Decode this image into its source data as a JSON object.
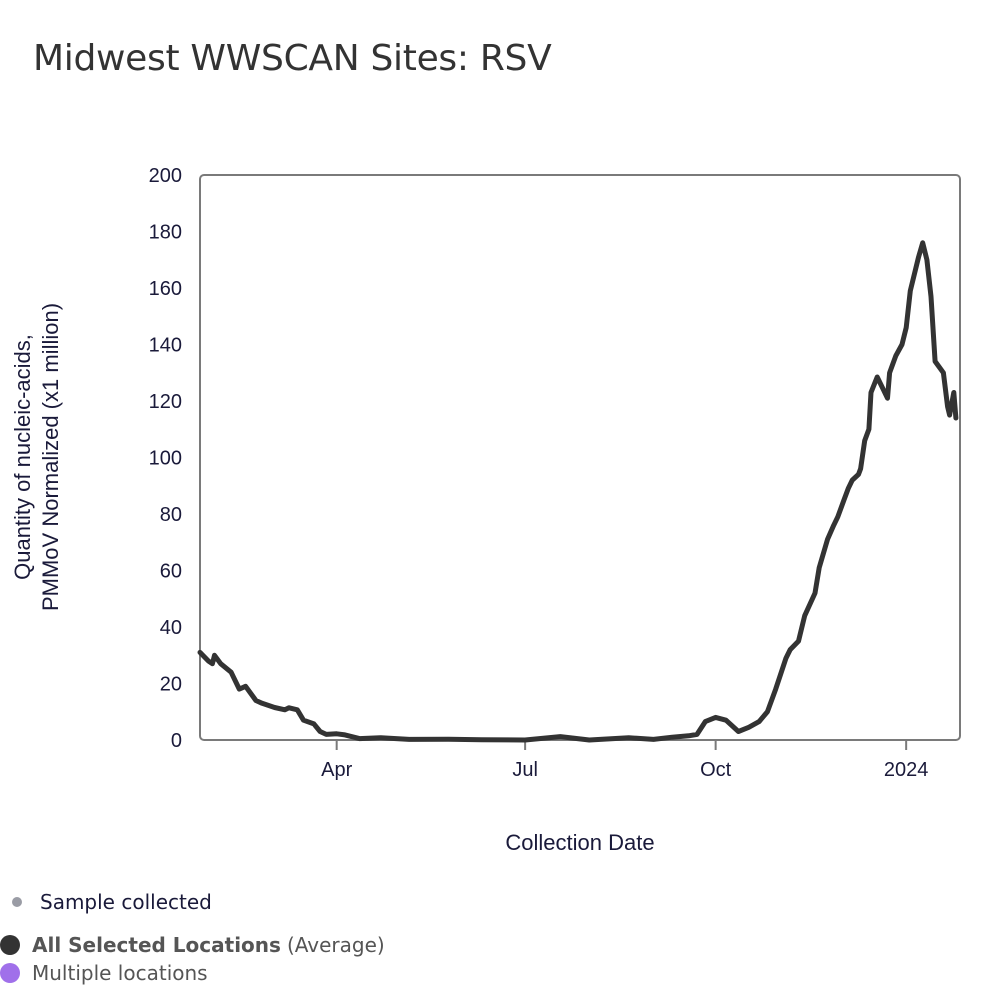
{
  "colors": {
    "line": "#333333",
    "frame": "#7a7a7a",
    "sample_dot": "#9a9ca5",
    "average_dot": "#333333",
    "multiple_dot": "#a070ea",
    "text": "#1a1a3a"
  },
  "chart_data": {
    "type": "line",
    "title": "Midwest WWSCAN Sites: RSV",
    "xlabel": "Collection Date",
    "ylabel_lines": [
      "Quantity of nucleic-acids,",
      "PMMoV Normalized (x1 million)"
    ],
    "ylabel": "Quantity of nucleic-acids, PMMoV Normalized (x1 million)",
    "ylim": [
      0,
      200
    ],
    "yticks": [
      0,
      20,
      40,
      60,
      80,
      100,
      120,
      140,
      160,
      180,
      200
    ],
    "xlim": [
      "2023-01-25",
      "2024-01-27"
    ],
    "xticks": [
      {
        "date": "2023-04-01",
        "label": "Apr"
      },
      {
        "date": "2023-07-01",
        "label": "Jul"
      },
      {
        "date": "2023-10-01",
        "label": "Oct"
      },
      {
        "date": "2024-01-01",
        "label": "2024"
      }
    ],
    "grid": false,
    "legend_position": "bottom-left",
    "series": [
      {
        "name": "All Selected Locations (Average)",
        "points": [
          [
            "2023-01-25",
            31
          ],
          [
            "2023-01-29",
            28
          ],
          [
            "2023-01-31",
            27
          ],
          [
            "2023-02-01",
            30
          ],
          [
            "2023-02-04",
            27
          ],
          [
            "2023-02-09",
            24
          ],
          [
            "2023-02-13",
            18
          ],
          [
            "2023-02-16",
            19
          ],
          [
            "2023-02-21",
            14
          ],
          [
            "2023-02-24",
            13
          ],
          [
            "2023-03-02",
            11.5
          ],
          [
            "2023-03-07",
            10.7
          ],
          [
            "2023-03-09",
            11.4
          ],
          [
            "2023-03-13",
            10.7
          ],
          [
            "2023-03-16",
            7
          ],
          [
            "2023-03-21",
            5.7
          ],
          [
            "2023-03-24",
            3
          ],
          [
            "2023-03-27",
            2
          ],
          [
            "2023-04-01",
            2.2
          ],
          [
            "2023-04-05",
            1.8
          ],
          [
            "2023-04-12",
            0.5
          ],
          [
            "2023-04-22",
            0.8
          ],
          [
            "2023-05-06",
            0.2
          ],
          [
            "2023-05-25",
            0.3
          ],
          [
            "2023-06-10",
            0.1
          ],
          [
            "2023-07-01",
            0
          ],
          [
            "2023-07-18",
            1.2
          ],
          [
            "2023-08-01",
            0
          ],
          [
            "2023-08-20",
            0.8
          ],
          [
            "2023-09-01",
            0.2
          ],
          [
            "2023-09-10",
            1
          ],
          [
            "2023-09-18",
            1.5
          ],
          [
            "2023-09-22",
            2
          ],
          [
            "2023-09-26",
            6.5
          ],
          [
            "2023-10-01",
            8
          ],
          [
            "2023-10-06",
            7
          ],
          [
            "2023-10-12",
            3
          ],
          [
            "2023-10-17",
            4.5
          ],
          [
            "2023-10-22",
            6.5
          ],
          [
            "2023-10-26",
            10
          ],
          [
            "2023-10-30",
            18
          ],
          [
            "2023-11-04",
            29
          ],
          [
            "2023-11-06",
            32
          ],
          [
            "2023-11-10",
            35
          ],
          [
            "2023-11-13",
            44
          ],
          [
            "2023-11-18",
            52
          ],
          [
            "2023-11-20",
            61
          ],
          [
            "2023-11-24",
            71
          ],
          [
            "2023-11-27",
            76
          ],
          [
            "2023-11-29",
            79
          ],
          [
            "2023-12-02",
            85
          ],
          [
            "2023-12-04",
            89
          ],
          [
            "2023-12-06",
            92
          ],
          [
            "2023-12-09",
            94
          ],
          [
            "2023-12-10",
            96
          ],
          [
            "2023-12-12",
            106
          ],
          [
            "2023-12-14",
            110
          ],
          [
            "2023-12-15",
            123
          ],
          [
            "2023-12-18",
            128.5
          ],
          [
            "2023-12-21",
            124
          ],
          [
            "2023-12-23",
            121
          ],
          [
            "2023-12-24",
            130
          ],
          [
            "2023-12-27",
            136
          ],
          [
            "2023-12-30",
            140
          ],
          [
            "2024-01-01",
            146
          ],
          [
            "2024-01-03",
            159
          ],
          [
            "2024-01-07",
            171
          ],
          [
            "2024-01-09",
            176
          ],
          [
            "2024-01-11",
            170
          ],
          [
            "2024-01-13",
            157
          ],
          [
            "2024-01-15",
            134
          ],
          [
            "2024-01-17",
            132
          ],
          [
            "2024-01-19",
            130
          ],
          [
            "2024-01-21",
            118
          ],
          [
            "2024-01-22",
            115
          ],
          [
            "2024-01-24",
            123
          ],
          [
            "2024-01-25",
            114
          ]
        ]
      }
    ]
  },
  "legend": {
    "sample_label": "Sample collected",
    "average_bold": "All Selected Locations",
    "average_suffix": "(Average)",
    "multiple_label": "Multiple locations"
  }
}
